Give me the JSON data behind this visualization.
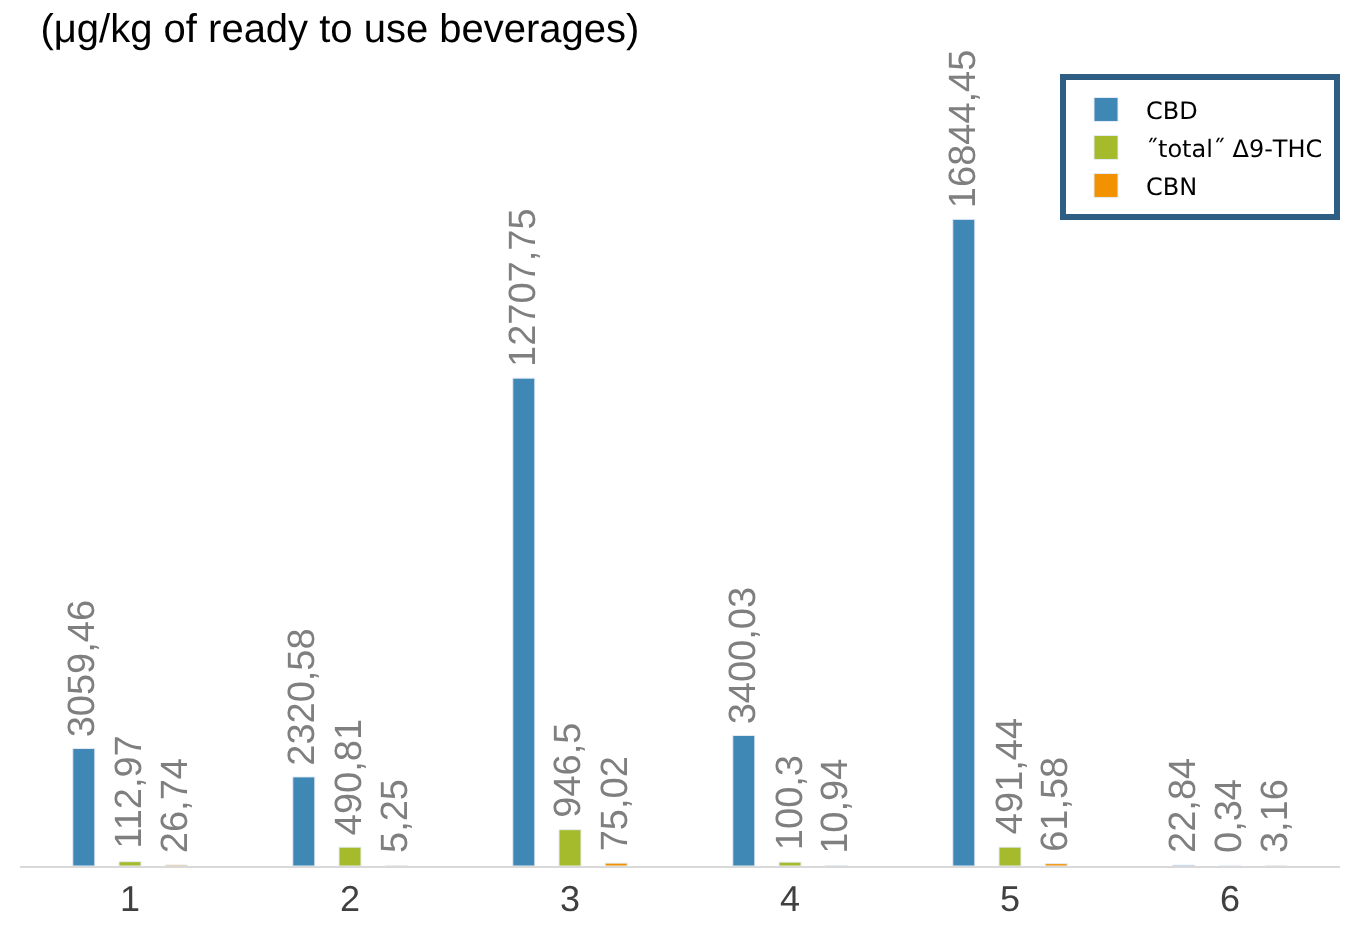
{
  "chart_data": {
    "type": "bar",
    "title": "(μg/kg of ready to use beverages)",
    "categories": [
      "1",
      "2",
      "3",
      "4",
      "5",
      "6"
    ],
    "series": [
      {
        "name": "CBD",
        "color": "#3f87b4",
        "values": [
          3059.46,
          2320.58,
          12707.75,
          3400.03,
          16844.45,
          22.84
        ],
        "value_labels": [
          "3059,46",
          "2320,58",
          "12707,75",
          "3400,03",
          "16844,45",
          "22,84"
        ]
      },
      {
        "name": "˝total˝ Δ9-THC",
        "color": "#a5bb2b",
        "values": [
          112.97,
          490.81,
          946.5,
          100.3,
          491.44,
          0.34
        ],
        "value_labels": [
          "112,97",
          "490,81",
          "946,5",
          "100,3",
          "491,44",
          "0,34"
        ]
      },
      {
        "name": "CBN",
        "color": "#f39200",
        "values": [
          26.74,
          5.25,
          75.02,
          10.94,
          61.58,
          3.16
        ],
        "value_labels": [
          "26,74",
          "5,25",
          "75,02",
          "10,94",
          "61,58",
          "3,16"
        ]
      }
    ],
    "legend": "top right"
  }
}
